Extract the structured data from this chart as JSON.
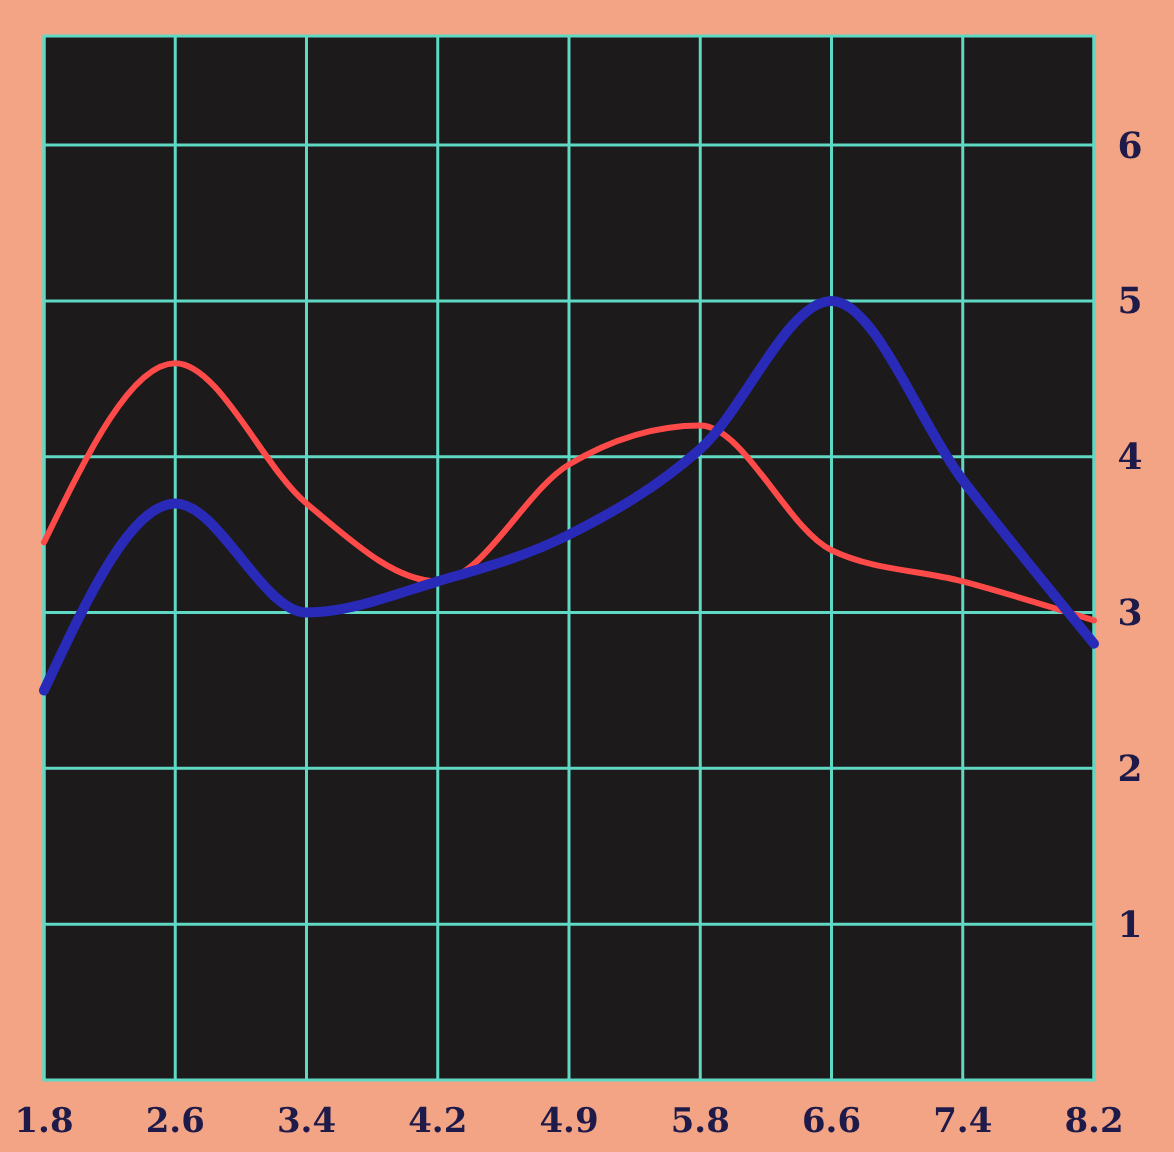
{
  "chart_data": {
    "type": "line",
    "categories": [
      "1.8",
      "2.6",
      "3.4",
      "4.2",
      "4.9",
      "5.8",
      "6.6",
      "7.4",
      "8.2"
    ],
    "series": [
      {
        "color": "#ff4a4a",
        "values": [
          3.45,
          4.6,
          3.7,
          3.2,
          3.95,
          4.2,
          3.4,
          3.2,
          2.95
        ]
      },
      {
        "color": "#2a2ab8",
        "values": [
          2.5,
          3.7,
          3.0,
          3.2,
          3.5,
          4.05,
          5.0,
          3.85,
          2.8
        ]
      }
    ],
    "ylim": [
      0,
      6.7
    ],
    "yticks": [
      1,
      2,
      3,
      4,
      5,
      6
    ],
    "grid": true,
    "marker": "none",
    "line_style": "solid"
  }
}
